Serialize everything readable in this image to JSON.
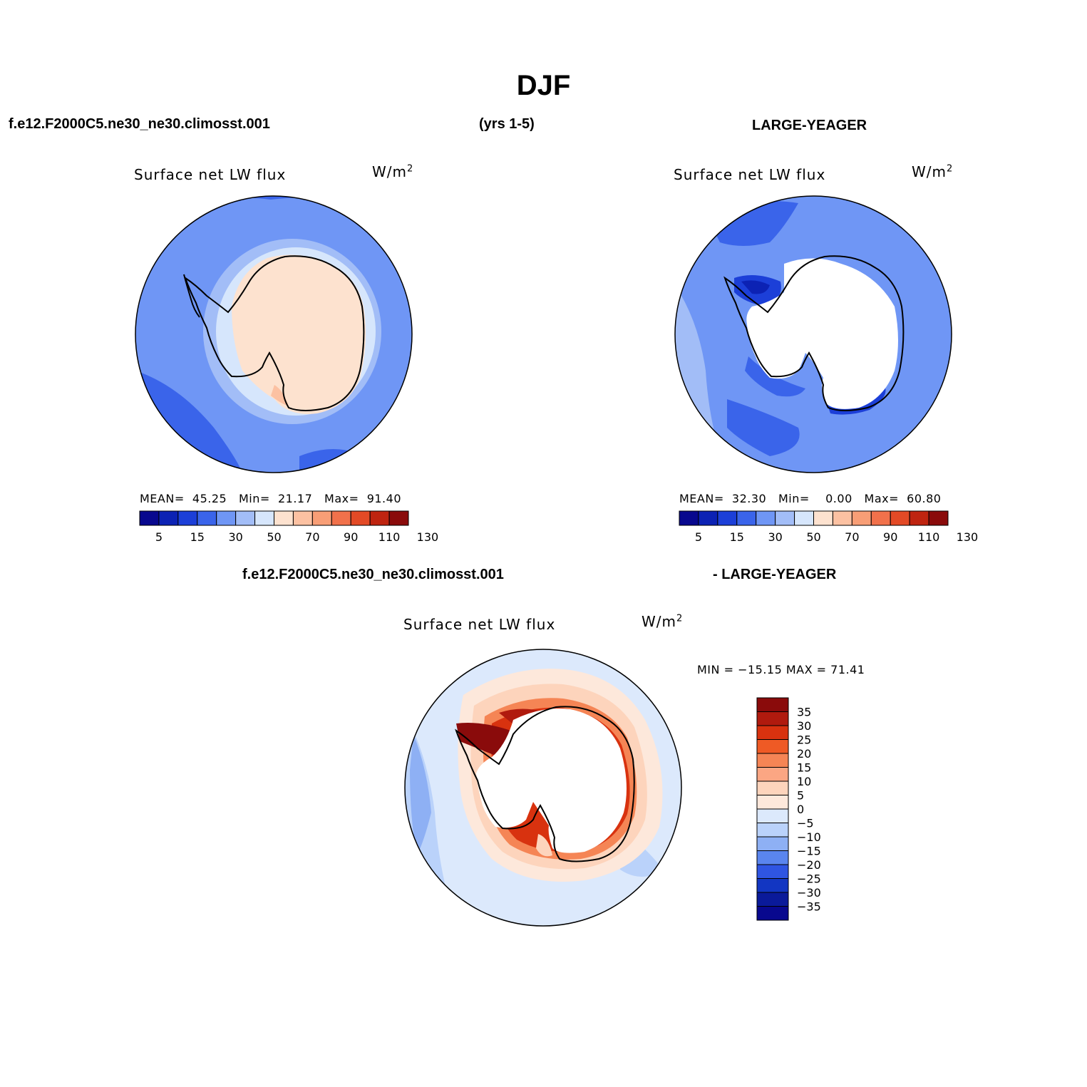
{
  "figure": {
    "title": "DJF",
    "case_label": "f.e12.F2000C5.ne30_ne30.climosst.001",
    "years_label": "(yrs 1-5)",
    "obs_label": "LARGE-YEAGER",
    "diff_case_label": "f.e12.F2000C5.ne30_ne30.climosst.001",
    "diff_obs_label": "- LARGE-YEAGER"
  },
  "panels": [
    {
      "variable": "Surface net LW flux",
      "units": "W/m",
      "units_sup": "2",
      "stats": {
        "mean_label": "MEAN=",
        "mean": "45.25",
        "min_label": "Min=",
        "min": "21.17",
        "max_label": "Max=",
        "max": "91.40"
      },
      "colorbar_ticks": [
        "5",
        "15",
        "30",
        "50",
        "70",
        "90",
        "110",
        "130"
      ]
    },
    {
      "variable": "Surface net LW flux",
      "units": "W/m",
      "units_sup": "2",
      "stats": {
        "mean_label": "MEAN=",
        "mean": "32.30",
        "min_label": "Min=",
        "min": "0.00",
        "max_label": "Max=",
        "max": "60.80"
      },
      "colorbar_ticks": [
        "5",
        "15",
        "30",
        "50",
        "70",
        "90",
        "110",
        "130"
      ]
    },
    {
      "variable": "Surface net LW flux",
      "units": "W/m",
      "units_sup": "2",
      "stats": {
        "text": "MIN = −15.15 MAX =  71.41"
      },
      "colorbar_ticks": [
        "35",
        "30",
        "25",
        "20",
        "15",
        "10",
        "5",
        "0",
        "−5",
        "−10",
        "−15",
        "−20",
        "−25",
        "−30",
        "−35"
      ]
    }
  ],
  "colors": {
    "abs_scale": [
      "#08088e",
      "#0c22b4",
      "#1c3fd8",
      "#3a64ea",
      "#6f96f5",
      "#a2bdf7",
      "#d6e6fc",
      "#fde2cf",
      "#fcc1a2",
      "#f89e76",
      "#f1714b",
      "#e34a26",
      "#bf2410",
      "#8a0b0b"
    ],
    "diff_scale": [
      "#8a0b0b",
      "#b01a0e",
      "#d8320f",
      "#ef5a25",
      "#f58555",
      "#fba683",
      "#fdd4bc",
      "#fde8db",
      "#dce9fc",
      "#bad2fa",
      "#8eb0f4",
      "#5a85ee",
      "#2f55e2",
      "#1236c2",
      "#0a1a9a",
      "#08088e"
    ]
  }
}
